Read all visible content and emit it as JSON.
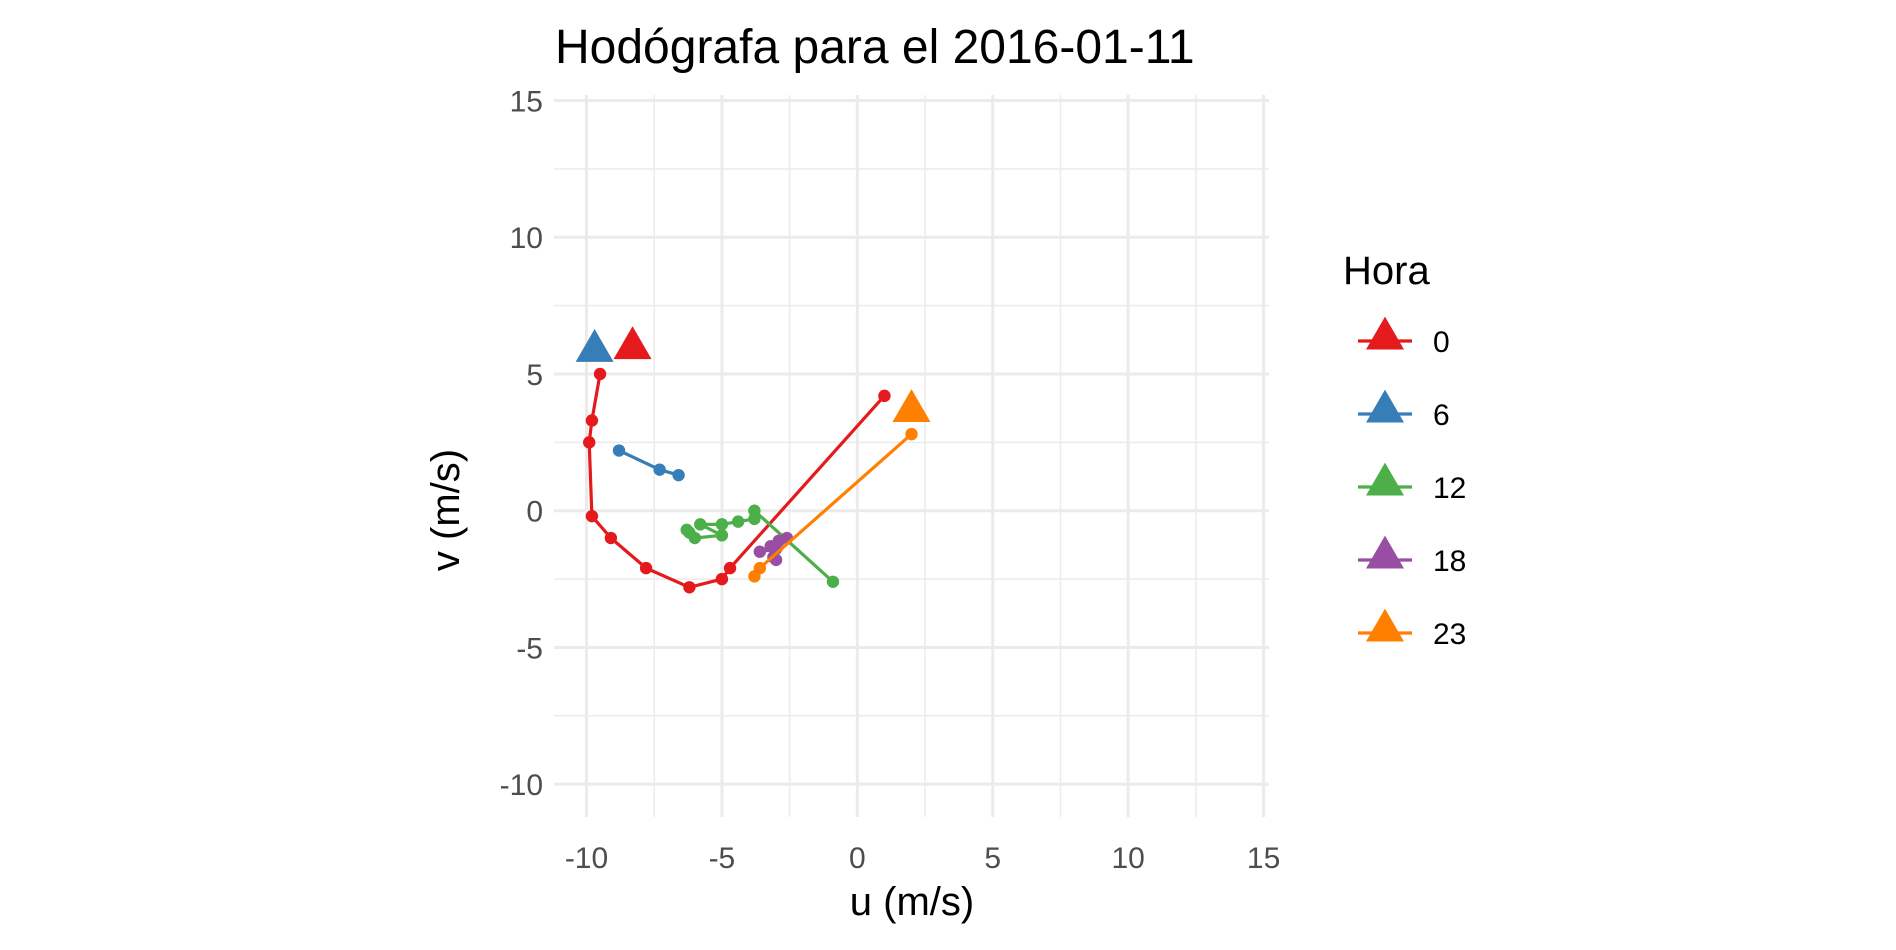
{
  "chart_data": {
    "type": "line",
    "title": "Hodógrafa para el 2016-01-11",
    "xlabel": "u (m/s)",
    "ylabel": "v (m/s)",
    "xlim": [
      -11.2,
      15.2
    ],
    "ylim": [
      -11.2,
      15.2
    ],
    "xticks": [
      -10,
      -5,
      0,
      5,
      10,
      15
    ],
    "yticks": [
      -10,
      -5,
      0,
      5,
      10,
      15
    ],
    "xtick_labels": [
      "-10",
      "-5",
      "0",
      "5",
      "10",
      "15"
    ],
    "ytick_labels": [
      "-10",
      "-5",
      "0",
      "5",
      "10",
      "15"
    ],
    "grid": true,
    "legend": {
      "title": "Hora",
      "position": "right"
    },
    "series": [
      {
        "name": "0",
        "color": "#E41A1C",
        "points": [
          [
            1.0,
            4.2
          ],
          [
            -4.7,
            -2.1
          ],
          [
            -5.0,
            -2.5
          ],
          [
            -6.2,
            -2.8
          ],
          [
            -7.8,
            -2.1
          ],
          [
            -9.1,
            -1.0
          ],
          [
            -9.8,
            -0.2
          ],
          [
            -9.9,
            2.5
          ],
          [
            -9.8,
            3.3
          ],
          [
            -9.5,
            5.0
          ]
        ],
        "end_marker": [
          -8.3,
          6.0
        ]
      },
      {
        "name": "6",
        "color": "#377EB8",
        "points": [
          [
            -6.6,
            1.3
          ],
          [
            -7.3,
            1.5
          ],
          [
            -8.8,
            2.2
          ]
        ],
        "end_marker": [
          -9.7,
          5.9
        ]
      },
      {
        "name": "12",
        "color": "#4DAF4A",
        "points": [
          [
            -0.9,
            -2.6
          ],
          [
            -3.8,
            0.0
          ],
          [
            -3.8,
            -0.3
          ],
          [
            -4.4,
            -0.4
          ],
          [
            -5.0,
            -0.5
          ],
          [
            -5.8,
            -0.5
          ],
          [
            -5.0,
            -0.9
          ],
          [
            -6.0,
            -1.0
          ],
          [
            -6.2,
            -0.8
          ],
          [
            -6.3,
            -0.7
          ]
        ],
        "end_marker": null
      },
      {
        "name": "18",
        "color": "#984EA3",
        "points": [
          [
            -2.6,
            -1.0
          ],
          [
            -2.9,
            -1.1
          ],
          [
            -3.2,
            -1.3
          ],
          [
            -3.6,
            -1.5
          ],
          [
            -3.0,
            -1.4
          ],
          [
            -3.1,
            -1.7
          ],
          [
            -3.0,
            -1.8
          ]
        ],
        "end_marker": null
      },
      {
        "name": "23",
        "color": "#FF7F00",
        "points": [
          [
            2.0,
            2.8
          ],
          [
            -3.6,
            -2.1
          ],
          [
            -3.8,
            -2.4
          ]
        ],
        "end_marker": [
          2.0,
          3.7
        ]
      }
    ]
  }
}
